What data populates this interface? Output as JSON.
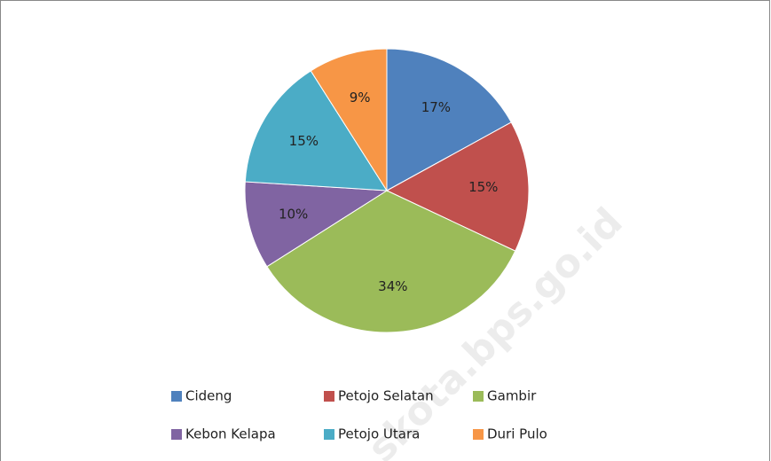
{
  "chart_data": {
    "type": "pie",
    "categories": [
      "Cideng",
      "Petojo Selatan",
      "Gambir",
      "Kebon Kelapa",
      "Petojo Utara",
      "Duri Pulo"
    ],
    "values": [
      17,
      15,
      34,
      10,
      15,
      9
    ],
    "value_labels": [
      "17%",
      "15%",
      "34%",
      "10%",
      "15%",
      "9%"
    ],
    "colors": [
      "#4f81bd",
      "#c0504d",
      "#9bbb59",
      "#8064a2",
      "#4bacc6",
      "#f79646"
    ],
    "legend": "bottom",
    "watermark": "skota.bps.go.id"
  }
}
